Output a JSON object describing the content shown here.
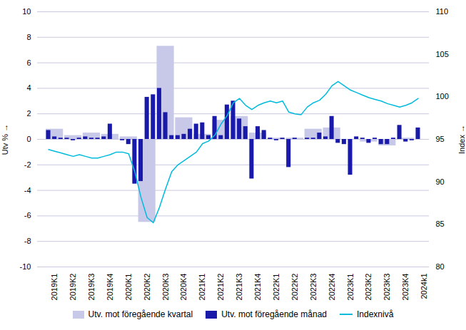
{
  "chart_data": {
    "type": "bar",
    "categories": [
      "2019K1",
      "2019K2",
      "2019K3",
      "2019K4",
      "2020K1",
      "2020K2",
      "2020K3",
      "2020K4",
      "2021K1",
      "2021K2",
      "2021K3",
      "2021K4",
      "2022K1",
      "2022K2",
      "2022K3",
      "2022K4",
      "2023K1",
      "2023K2",
      "2023K3",
      "2023K4",
      "2024k1"
    ],
    "series": [
      {
        "name": "Utv. mot föregående kvartal",
        "type": "bar",
        "color": "#c8c8e8",
        "values": [
          0.8,
          0.3,
          0.5,
          0.4,
          0.2,
          -6.5,
          7.3,
          1.7,
          0.4,
          1.5,
          1.8,
          0.5,
          0.1,
          0.1,
          0.8,
          0.9,
          0.0,
          -0.2,
          -0.5,
          0.1,
          0.0
        ]
      },
      {
        "name": "Utv. mot föregående månad",
        "type": "bar",
        "color": "#1a1aaa",
        "values": [
          [
            0.7,
            0.2,
            0.1
          ],
          [
            0.1,
            -0.1,
            0.1
          ],
          [
            0.2,
            0.1,
            0.1
          ],
          [
            0.2,
            1.2,
            0.0
          ],
          [
            -0.1,
            -0.4,
            -3.5
          ],
          [
            -3.3,
            3.3,
            3.5
          ],
          [
            4.0,
            2.1,
            0.3
          ],
          [
            0.3,
            0.4,
            0.8
          ],
          [
            1.2,
            1.3,
            0.3
          ],
          [
            1.8,
            0.3,
            2.7
          ],
          [
            3.0,
            1.6,
            1.0
          ],
          [
            -3.1,
            1.0,
            0.7
          ],
          [
            0.1,
            -0.1,
            0.1
          ],
          [
            -2.2,
            0.1,
            0.0
          ],
          [
            0.1,
            0.1,
            0.5
          ],
          [
            0.2,
            1.8,
            -0.3
          ],
          [
            -0.4,
            -2.8,
            0.2
          ],
          [
            0.1,
            -0.3,
            0.1
          ],
          [
            -0.4,
            -0.4,
            0.1
          ],
          [
            1.1,
            -0.2,
            -0.1
          ],
          [
            0.9
          ]
        ]
      },
      {
        "name": "Indexnivå",
        "type": "line",
        "axis": "y2",
        "color": "#00bbdd",
        "values": [
          [
            93.8,
            93.6,
            93.4
          ],
          [
            93.2,
            93.0,
            93.2
          ],
          [
            93.0,
            92.8,
            92.8
          ],
          [
            93.0,
            93.2,
            93.5
          ],
          [
            93.5,
            93.3,
            91.2
          ],
          [
            88.2,
            85.8,
            85.2
          ],
          [
            87.0,
            89.2,
            91.2
          ],
          [
            92.0,
            92.5,
            93.0
          ],
          [
            93.5,
            94.5,
            94.8
          ],
          [
            95.5,
            96.8,
            97.8
          ],
          [
            99.3,
            99.8,
            99.0
          ],
          [
            98.5,
            99.0,
            99.3
          ],
          [
            99.5,
            99.3,
            99.5
          ],
          [
            98.2,
            98.0,
            97.9
          ],
          [
            98.8,
            99.3,
            99.6
          ],
          [
            100.3,
            101.3,
            101.8
          ],
          [
            101.3,
            100.8,
            100.5
          ],
          [
            100.2,
            99.9,
            99.7
          ],
          [
            99.5,
            99.2,
            99.0
          ],
          [
            98.8,
            99.0,
            99.3
          ],
          [
            99.8
          ]
        ]
      }
    ],
    "y_label": "Utv %",
    "y2_label": "Index",
    "ylim": [
      -10,
      10
    ],
    "yticks": [
      -10,
      -8,
      -6,
      -4,
      -2,
      0,
      2,
      4,
      6,
      8,
      10
    ],
    "y2lim": [
      80,
      110
    ],
    "y2ticks": [
      80,
      85,
      90,
      95,
      100,
      105,
      110
    ],
    "grid": true,
    "legend": "bottom"
  }
}
